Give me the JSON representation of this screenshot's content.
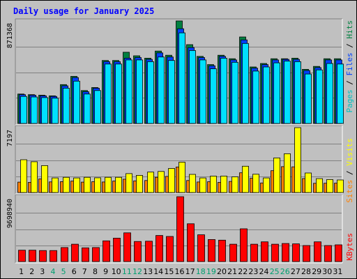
{
  "chart_data": [
    {
      "type": "bar",
      "title": "Daily usage for January 2025",
      "categories": [
        "1",
        "2",
        "3",
        "4",
        "5",
        "6",
        "7",
        "8",
        "9",
        "10",
        "11",
        "12",
        "13",
        "14",
        "15",
        "16",
        "17",
        "18",
        "19",
        "20",
        "21",
        "22",
        "23",
        "24",
        "25",
        "26",
        "27",
        "28",
        "29",
        "30",
        "31"
      ],
      "weekend_days": [
        "4",
        "5",
        "11",
        "12",
        "18",
        "19",
        "25",
        "26"
      ],
      "ymax_label": "871368",
      "ylim": [
        0,
        871368
      ],
      "grid": true,
      "series": [
        {
          "name": "Hits",
          "color": "#008040",
          "values": [
            250000,
            245000,
            240000,
            235000,
            330000,
            400000,
            280000,
            305000,
            535000,
            535000,
            605000,
            575000,
            555000,
            615000,
            580000,
            871368,
            670000,
            570000,
            500000,
            580000,
            550000,
            735000,
            480000,
            510000,
            550000,
            550000,
            555000,
            460000,
            485000,
            550000,
            550000
          ]
        },
        {
          "name": "Files",
          "color": "#0040ff",
          "values": [
            245000,
            240000,
            235000,
            230000,
            320000,
            390000,
            270000,
            300000,
            525000,
            525000,
            555000,
            560000,
            545000,
            600000,
            565000,
            805000,
            645000,
            560000,
            490000,
            570000,
            540000,
            710000,
            470000,
            500000,
            540000,
            545000,
            545000,
            450000,
            475000,
            540000,
            540000
          ]
        },
        {
          "name": "Pages",
          "color": "#00e0ff",
          "values": [
            230000,
            225000,
            220000,
            215000,
            300000,
            360000,
            250000,
            280000,
            505000,
            505000,
            540000,
            540000,
            525000,
            565000,
            535000,
            770000,
            620000,
            540000,
            465000,
            555000,
            520000,
            680000,
            445000,
            480000,
            515000,
            530000,
            525000,
            420000,
            455000,
            510000,
            505000
          ]
        }
      ]
    },
    {
      "type": "bar",
      "ymax_label": "7197",
      "ylim": [
        0,
        7197
      ],
      "grid": true,
      "series": [
        {
          "name": "Sites",
          "color": "#ff8000",
          "values": [
            1150,
            1130,
            1510,
            1180,
            1210,
            1270,
            1150,
            1200,
            1170,
            1270,
            1480,
            1290,
            1330,
            1690,
            1790,
            2830,
            1330,
            1170,
            1200,
            1130,
            1230,
            2190,
            1580,
            1060,
            2420,
            2870,
            2850,
            1550,
            1020,
            1030,
            1040
          ]
        },
        {
          "name": "Visits",
          "color": "#ffff00",
          "values": [
            3640,
            3410,
            2990,
            1620,
            1690,
            1620,
            1690,
            1630,
            1690,
            1690,
            2100,
            1900,
            2270,
            2340,
            2670,
            3370,
            2010,
            1620,
            1820,
            1830,
            1740,
            2920,
            2030,
            1620,
            3840,
            4300,
            7197,
            2170,
            1540,
            1440,
            1390
          ]
        }
      ]
    },
    {
      "type": "bar",
      "ymax_label": "9698940",
      "ylim": [
        0,
        9698940
      ],
      "grid": true,
      "series": [
        {
          "name": "KBytes",
          "color": "#ff0000",
          "values": [
            1700000,
            1700000,
            1650000,
            1650000,
            2100000,
            2600000,
            2050000,
            2100000,
            3100000,
            3500000,
            4300000,
            3000000,
            3050000,
            3900000,
            3750000,
            9698940,
            5650000,
            4000000,
            3300000,
            3200000,
            2600000,
            4900000,
            2600000,
            2950000,
            2600000,
            2700000,
            2650000,
            2400000,
            2950000,
            2400000,
            2500000
          ]
        }
      ]
    }
  ],
  "legend": {
    "top": [
      {
        "text": "Pages",
        "color": "#00c0c0"
      },
      {
        "text": " / ",
        "color": "#000000"
      },
      {
        "text": "Files",
        "color": "#0040ff"
      },
      {
        "text": " / ",
        "color": "#000000"
      },
      {
        "text": "Hits",
        "color": "#008040"
      }
    ],
    "middle": [
      {
        "text": "Sites",
        "color": "#ff8000"
      },
      {
        "text": " / ",
        "color": "#000000"
      },
      {
        "text": "Visits",
        "color": "#ffff00"
      }
    ],
    "bottom": [
      {
        "text": "KBytes",
        "color": "#ff0000"
      }
    ]
  },
  "colors": {
    "background": "#c0c0c0",
    "title": "#0000ff",
    "weekday_label": "#000000",
    "weekend_label": "#00a070",
    "grid": "#808080"
  }
}
